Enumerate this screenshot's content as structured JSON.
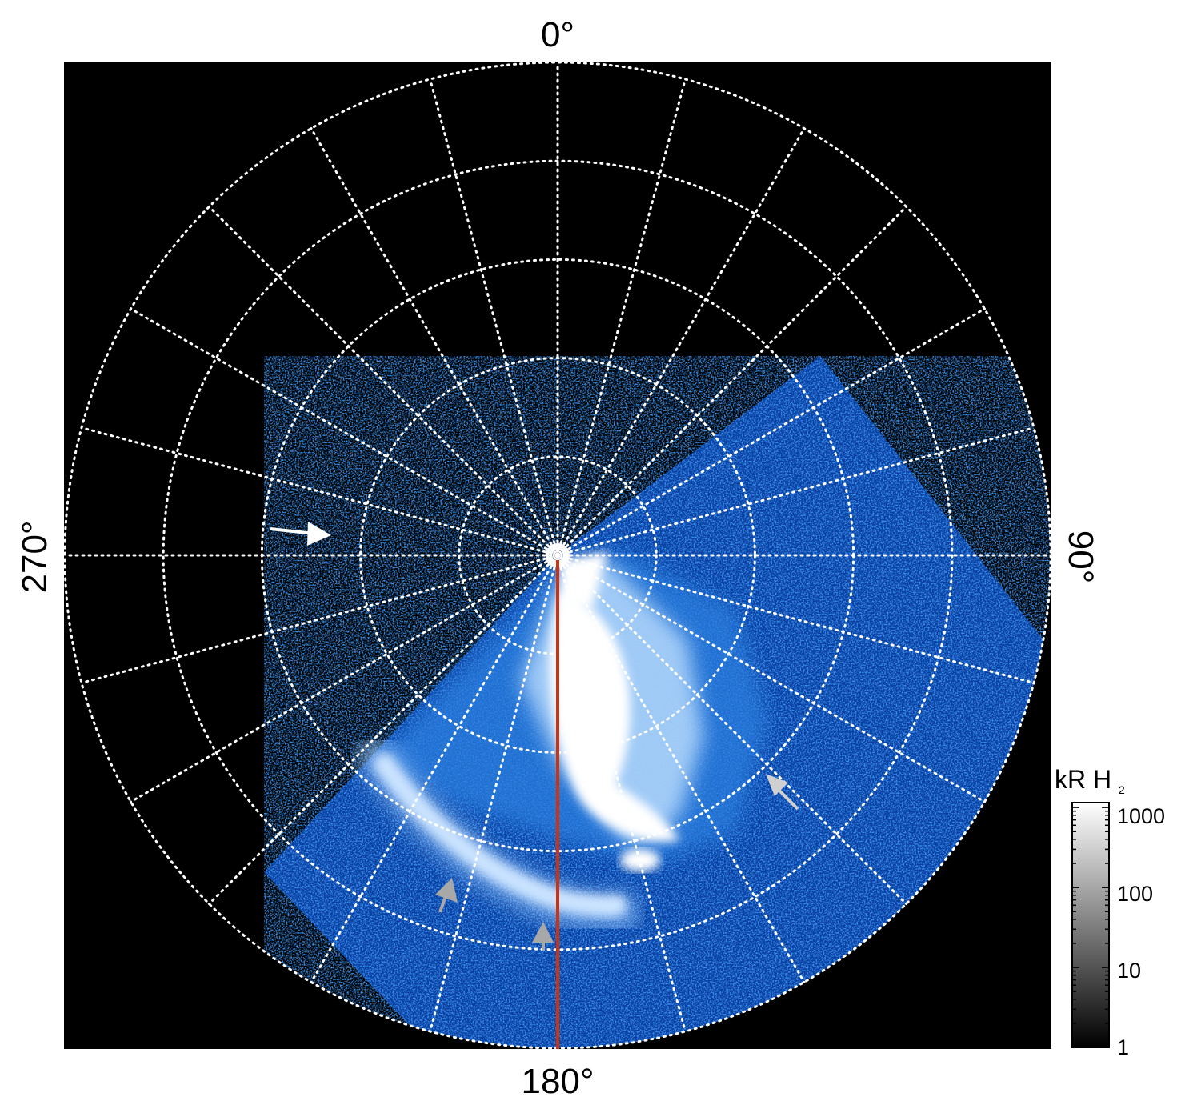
{
  "map": {
    "longitude_labels": {
      "top": "0°",
      "right": "90°",
      "bottom": "180°",
      "left": "270°"
    },
    "projection": "polar",
    "graticule": "dotted-white",
    "meridian_count": 24,
    "latitude_circle_count": 5
  },
  "colorbar": {
    "title_main": "kR H",
    "title_sub": "2",
    "ticks": [
      "1000",
      "100",
      "10",
      "1"
    ],
    "scale": "log",
    "range": [
      1,
      1000
    ],
    "colors": [
      "#000000",
      "#ffffff"
    ]
  },
  "image_colors": {
    "background": "#000000",
    "emission_low": "#0a3d9e",
    "emission_mid": "#2a7fe0",
    "emission_high": "#ffffff",
    "grid": "#ffffff",
    "meridian_line": "#cc3311",
    "arrow_main": "#ffffff",
    "arrow_secondary": "#a8a8a8"
  },
  "markers": [
    {
      "name": "arrow-west",
      "color": "white"
    },
    {
      "name": "arrow-east-oval",
      "color": "lightgray"
    },
    {
      "name": "arrow-south-1",
      "color": "gray"
    },
    {
      "name": "arrow-south-2",
      "color": "gray"
    }
  ]
}
